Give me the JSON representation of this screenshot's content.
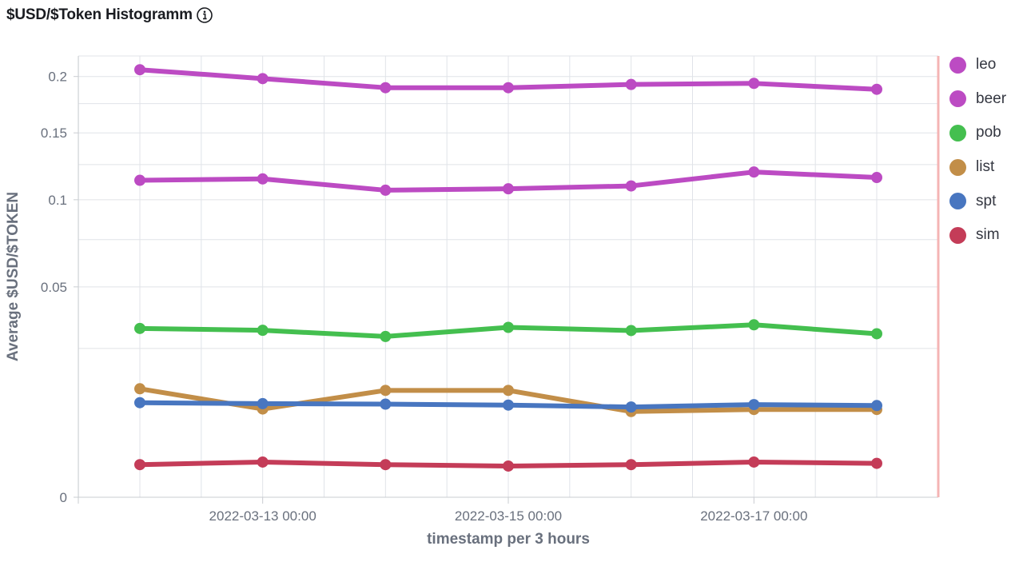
{
  "header": {
    "title": "$USD/$Token Histogramm"
  },
  "chart_data": {
    "type": "line",
    "title": "$USD/$Token Histogramm",
    "xlabel": "timestamp per 3 hours",
    "ylabel": "Average $USD/$TOKEN",
    "x_ticks": [
      "2022-03-13 00:00",
      "2022-03-15 00:00",
      "2022-03-17 00:00"
    ],
    "y_ticks": [
      "0",
      "0.05",
      "0.1",
      "0.15",
      "0.2"
    ],
    "y_scale": "sqrt",
    "ylim": [
      0,
      0.22
    ],
    "grid": true,
    "legend_position": "right",
    "x": [
      "2022-03-12 00:00",
      "2022-03-13 00:00",
      "2022-03-14 00:00",
      "2022-03-15 00:00",
      "2022-03-16 00:00",
      "2022-03-17 00:00",
      "2022-03-18 00:00"
    ],
    "series": [
      {
        "name": "leo",
        "color": "#bc4bc3",
        "values": [
          0.2065,
          0.198,
          0.1895,
          0.1895,
          0.1925,
          0.1935,
          0.188
        ]
      },
      {
        "name": "beer",
        "color": "#bc4bc3",
        "values": [
          0.1135,
          0.1145,
          0.1065,
          0.1075,
          0.1095,
          0.1195,
          0.1155
        ]
      },
      {
        "name": "pob",
        "color": "#44bf4f",
        "values": [
          0.0322,
          0.0315,
          0.0292,
          0.0326,
          0.0314,
          0.0336,
          0.0302
        ]
      },
      {
        "name": "list",
        "color": "#c28e48",
        "values": [
          0.0133,
          0.0088,
          0.0129,
          0.0129,
          0.0083,
          0.0087,
          0.0087
        ]
      },
      {
        "name": "spt",
        "color": "#4876c0",
        "values": [
          0.0101,
          0.0099,
          0.0098,
          0.0096,
          0.0092,
          0.0097,
          0.0095
        ]
      },
      {
        "name": "sim",
        "color": "#c43c58",
        "values": [
          0.0012,
          0.0014,
          0.0012,
          0.0011,
          0.0012,
          0.0014,
          0.0013
        ]
      }
    ]
  }
}
